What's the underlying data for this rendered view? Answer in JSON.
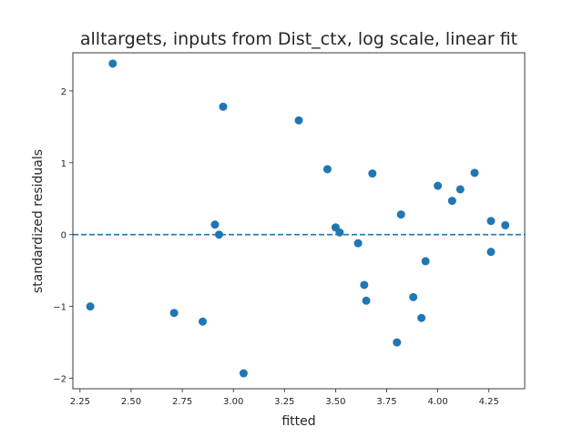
{
  "chart_data": {
    "type": "scatter",
    "title": "alltargets, inputs from Dist_ctx, log scale, linear fit",
    "xlabel": "fitted",
    "ylabel": "standardized residuals",
    "xlim": [
      2.215,
      4.425
    ],
    "ylim": [
      -2.145,
      2.53
    ],
    "xticks": [
      2.25,
      2.5,
      2.75,
      3.0,
      3.25,
      3.5,
      3.75,
      4.0,
      4.25
    ],
    "xtick_labels": [
      "2.25",
      "2.50",
      "2.75",
      "3.00",
      "3.25",
      "3.50",
      "3.75",
      "4.00",
      "4.25"
    ],
    "yticks": [
      -2,
      -1,
      0,
      1,
      2
    ],
    "ytick_labels": [
      "−2",
      "−1",
      "0",
      "1",
      "2"
    ],
    "grid": false,
    "reference_line": {
      "y": 0,
      "style": "dashed",
      "color": "#1f77b4"
    },
    "marker_color": "#1f77b4",
    "points": [
      {
        "x": 2.3,
        "y": -1.0
      },
      {
        "x": 2.41,
        "y": 2.38
      },
      {
        "x": 2.71,
        "y": -1.09
      },
      {
        "x": 2.85,
        "y": -1.21
      },
      {
        "x": 2.91,
        "y": 0.14
      },
      {
        "x": 2.93,
        "y": 0.0
      },
      {
        "x": 2.95,
        "y": 1.78
      },
      {
        "x": 3.05,
        "y": -1.93
      },
      {
        "x": 3.32,
        "y": 1.59
      },
      {
        "x": 3.46,
        "y": 0.91
      },
      {
        "x": 3.5,
        "y": 0.1
      },
      {
        "x": 3.52,
        "y": 0.03
      },
      {
        "x": 3.61,
        "y": -0.12
      },
      {
        "x": 3.64,
        "y": -0.7
      },
      {
        "x": 3.65,
        "y": -0.92
      },
      {
        "x": 3.68,
        "y": 0.85
      },
      {
        "x": 3.8,
        "y": -1.5
      },
      {
        "x": 3.82,
        "y": 0.28
      },
      {
        "x": 3.88,
        "y": -0.87
      },
      {
        "x": 3.92,
        "y": -1.16
      },
      {
        "x": 3.94,
        "y": -0.37
      },
      {
        "x": 4.0,
        "y": 0.68
      },
      {
        "x": 4.07,
        "y": 0.47
      },
      {
        "x": 4.11,
        "y": 0.63
      },
      {
        "x": 4.18,
        "y": 0.86
      },
      {
        "x": 4.26,
        "y": 0.19
      },
      {
        "x": 4.26,
        "y": -0.24
      },
      {
        "x": 4.33,
        "y": 0.13
      }
    ]
  }
}
